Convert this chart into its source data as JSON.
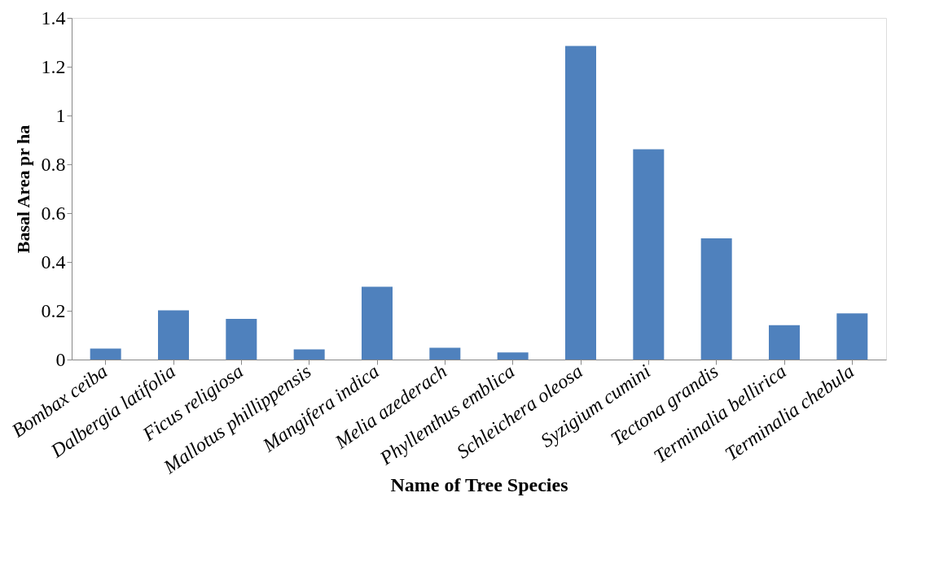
{
  "chart_data": {
    "type": "bar",
    "xlabel": "Name of Tree Species",
    "ylabel": "Basal Area pr ha",
    "categories": [
      "Bombax ceiba",
      "Dalbergia latifolia",
      "Ficus religiosa",
      "Mallotus phillippensis",
      "Mangifera indica",
      "Melia azederach",
      "Phyllenthus emblica",
      "Schleichera oleosa",
      "Syzigium cumini",
      "Tectona grandis",
      "Terminalia bellirica",
      "Terminalia chebula"
    ],
    "values": [
      0.045,
      0.202,
      0.167,
      0.042,
      0.298,
      0.048,
      0.029,
      1.285,
      0.862,
      0.497,
      0.141,
      0.189
    ],
    "color": "#4f81bd",
    "ylim": [
      0,
      1.4
    ],
    "yticks": [
      0,
      0.2,
      0.4,
      0.6,
      0.8,
      1,
      1.2,
      1.4
    ],
    "grid": false
  }
}
